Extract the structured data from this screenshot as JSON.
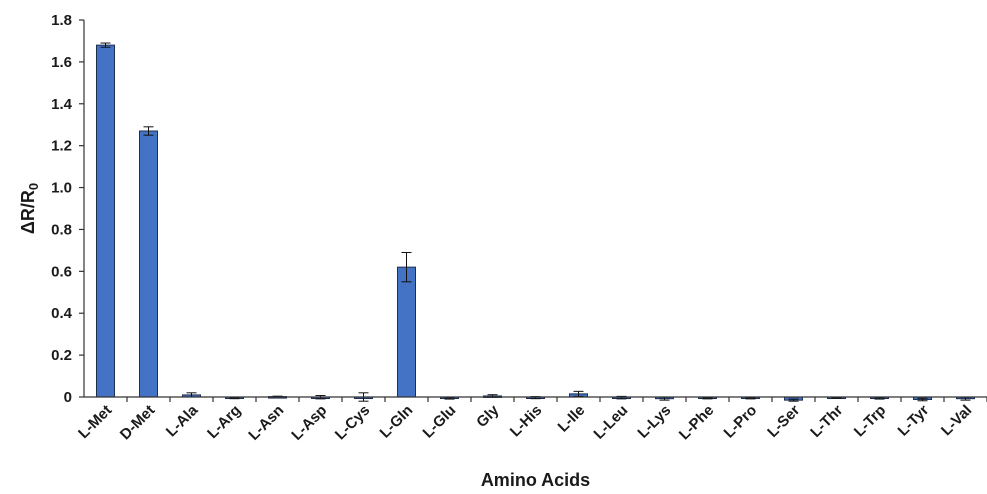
{
  "chart_data": {
    "type": "bar",
    "title": "",
    "xlabel": "Amino Acids",
    "ylabel": "ΔR/R",
    "ylabel_subscript": "0",
    "ylim": [
      0,
      1.8
    ],
    "yticks": [
      "0",
      "0.2",
      "0.4",
      "0.6",
      "0.8",
      "1.0",
      "1.2",
      "1.4",
      "1.6",
      "1.8"
    ],
    "grid": false,
    "categories": [
      "L-Met",
      "D-Met",
      "L-Ala",
      "L-Arg",
      "L-Asn",
      "L-Asp",
      "L-Cys",
      "L-Gln",
      "L-Glu",
      "Gly",
      "L-His",
      "L-Ile",
      "L-Leu",
      "L-Lys",
      "L-Phe",
      "L-Pro",
      "L-Ser",
      "L-Thr",
      "L-Trp",
      "L-Tyr",
      "L-Val"
    ],
    "values": [
      1.68,
      1.27,
      0.01,
      -0.005,
      0.002,
      -0.001,
      0.0,
      0.62,
      -0.006,
      0.005,
      -0.003,
      0.015,
      -0.003,
      -0.008,
      -0.006,
      -0.006,
      -0.015,
      -0.004,
      -0.006,
      -0.012,
      -0.008
    ],
    "errors": [
      0.01,
      0.02,
      0.01,
      0.003,
      0.002,
      0.008,
      0.02,
      0.07,
      0.004,
      0.006,
      0.005,
      0.012,
      0.006,
      0.007,
      0.003,
      0.003,
      0.005,
      0.002,
      0.004,
      0.006,
      0.007
    ],
    "colors": {
      "bar": "#4472C4",
      "bar_edge": "#1F2F4F",
      "axis": "#333333",
      "text": "#1a1a1a"
    }
  }
}
